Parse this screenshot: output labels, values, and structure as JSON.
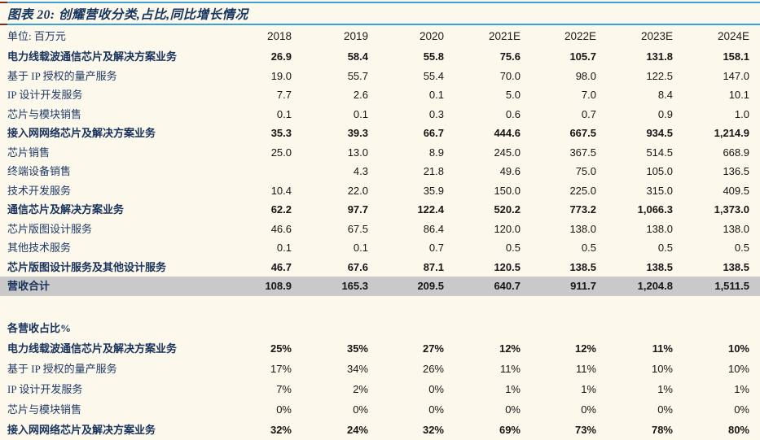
{
  "title": "图表 20: 创耀营收分类,占比,同比增长情况",
  "colors": {
    "background": "#fdf8ec",
    "accent_blue": "#3ba1d9",
    "accent_maroon": "#7e2a1c",
    "total_row_gray": "#c9c9c9",
    "label_navy": "#1e3a66"
  },
  "table": {
    "unit_label": "单位: 百万元",
    "years": [
      "2018",
      "2019",
      "2020",
      "2021E",
      "2022E",
      "2023E",
      "2024E"
    ],
    "revenue_rows": [
      {
        "label": "电力线载波通信芯片及解决方案业务",
        "bold": true,
        "values": [
          "26.9",
          "58.4",
          "55.8",
          "75.6",
          "105.7",
          "131.8",
          "158.1"
        ]
      },
      {
        "label": "基于 IP 授权的量产服务",
        "bold": false,
        "values": [
          "19.0",
          "55.7",
          "55.4",
          "70.0",
          "98.0",
          "122.5",
          "147.0"
        ]
      },
      {
        "label": "IP 设计开发服务",
        "bold": false,
        "values": [
          "7.7",
          "2.6",
          "0.1",
          "5.0",
          "7.0",
          "8.4",
          "10.1"
        ]
      },
      {
        "label": "芯片与模块销售",
        "bold": false,
        "values": [
          "0.1",
          "0.1",
          "0.3",
          "0.6",
          "0.7",
          "0.9",
          "1.0"
        ]
      },
      {
        "label": "接入网网络芯片及解决方案业务",
        "bold": true,
        "values": [
          "35.3",
          "39.3",
          "66.7",
          "444.6",
          "667.5",
          "934.5",
          "1,214.9"
        ]
      },
      {
        "label": "芯片销售",
        "bold": false,
        "values": [
          "25.0",
          "13.0",
          "8.9",
          "245.0",
          "367.5",
          "514.5",
          "668.9"
        ]
      },
      {
        "label": "终端设备销售",
        "bold": false,
        "values": [
          "",
          "4.3",
          "21.8",
          "49.6",
          "75.0",
          "105.0",
          "136.5"
        ]
      },
      {
        "label": "技术开发服务",
        "bold": false,
        "values": [
          "10.4",
          "22.0",
          "35.9",
          "150.0",
          "225.0",
          "315.0",
          "409.5"
        ]
      },
      {
        "label": "通信芯片及解决方案业务",
        "bold": true,
        "values": [
          "62.2",
          "97.7",
          "122.4",
          "520.2",
          "773.2",
          "1,066.3",
          "1,373.0"
        ]
      },
      {
        "label": "芯片版图设计服务",
        "bold": false,
        "values": [
          "46.6",
          "67.5",
          "86.4",
          "120.0",
          "138.0",
          "138.0",
          "138.0"
        ]
      },
      {
        "label": "其他技术服务",
        "bold": false,
        "values": [
          "0.1",
          "0.1",
          "0.7",
          "0.5",
          "0.5",
          "0.5",
          "0.5"
        ]
      },
      {
        "label": "芯片版图设计服务及其他设计服务",
        "bold": true,
        "values": [
          "46.7",
          "67.6",
          "87.1",
          "120.5",
          "138.5",
          "138.5",
          "138.5"
        ]
      },
      {
        "label": "营收合计",
        "bold": true,
        "total": true,
        "values": [
          "108.9",
          "165.3",
          "209.5",
          "640.7",
          "911.7",
          "1,204.8",
          "1,511.5"
        ]
      }
    ],
    "share_section_label": "各营收占比%",
    "share_rows": [
      {
        "label": "电力线载波通信芯片及解决方案业务",
        "bold": true,
        "values": [
          "25%",
          "35%",
          "27%",
          "12%",
          "12%",
          "11%",
          "10%"
        ]
      },
      {
        "label": "基于 IP 授权的量产服务",
        "bold": false,
        "values": [
          "17%",
          "34%",
          "26%",
          "11%",
          "11%",
          "10%",
          "10%"
        ]
      },
      {
        "label": "IP 设计开发服务",
        "bold": false,
        "values": [
          "7%",
          "2%",
          "0%",
          "1%",
          "1%",
          "1%",
          "1%"
        ]
      },
      {
        "label": "芯片与模块销售",
        "bold": false,
        "values": [
          "0%",
          "0%",
          "0%",
          "0%",
          "0%",
          "0%",
          "0%"
        ]
      },
      {
        "label": "接入网网络芯片及解决方案业务",
        "bold": true,
        "values": [
          "32%",
          "24%",
          "32%",
          "69%",
          "73%",
          "78%",
          "80%"
        ]
      }
    ]
  }
}
